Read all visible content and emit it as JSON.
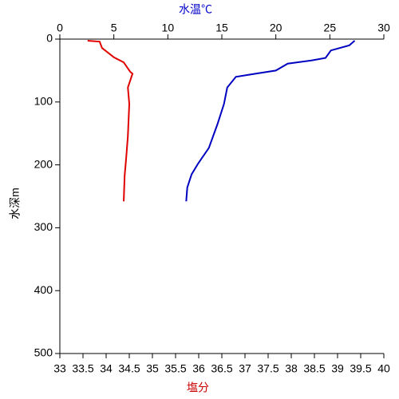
{
  "chart_data": {
    "type": "line",
    "x2label": "水温℃",
    "xlabel": "塩分",
    "ylabel": "水深m",
    "xlim": [
      33,
      40
    ],
    "xticks": [
      33,
      33.5,
      34,
      34.5,
      35,
      35.5,
      36,
      36.5,
      37,
      37.5,
      38,
      38.5,
      39,
      39.5,
      40
    ],
    "x2lim": [
      0,
      30
    ],
    "x2ticks": [
      0,
      5,
      10,
      15,
      20,
      25,
      30
    ],
    "ylim": [
      0,
      500
    ],
    "yticks": [
      0,
      100,
      200,
      300,
      400,
      500
    ],
    "y_inverted": true,
    "x2color": "#0000cc",
    "xlabelcolor": "#cc0000",
    "series": [
      {
        "color": "#0000c0",
        "axis": "x2",
        "x": [
          27.3,
          26.8,
          25.1,
          24.6,
          23.3,
          21.1,
          20.0,
          18.1,
          16.3,
          15.5,
          15.2,
          14.6,
          13.8,
          12.8,
          12.2,
          11.8,
          11.7
        ],
        "values": [
          2.5,
          10,
          18,
          30,
          34,
          39,
          50,
          55,
          60,
          77,
          103,
          135,
          173,
          198,
          215,
          236,
          258
        ]
      },
      {
        "color": "#e00000",
        "axis": "x",
        "x": [
          33.6,
          33.86,
          33.91,
          34.17,
          34.38,
          34.52,
          34.57,
          34.47,
          34.5,
          34.47,
          34.43,
          34.4,
          34.38
        ],
        "values": [
          2.5,
          4,
          14,
          29,
          37,
          52,
          55,
          77,
          103,
          154,
          192,
          217,
          258
        ]
      }
    ]
  }
}
